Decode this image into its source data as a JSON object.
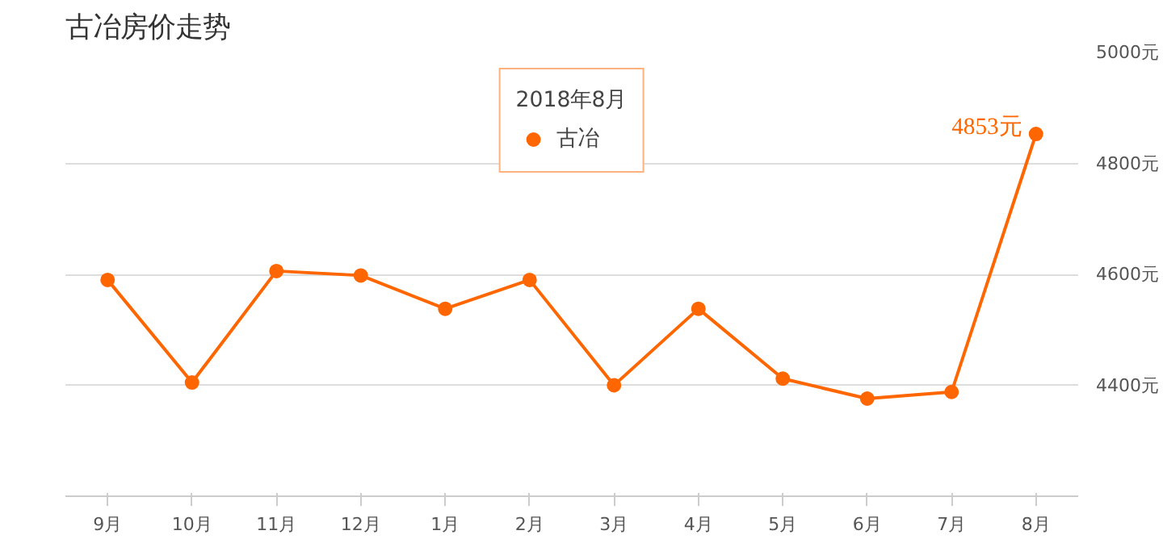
{
  "chart_data": {
    "type": "line",
    "title": "古冶房价走势",
    "categories": [
      "9月",
      "10月",
      "11月",
      "12月",
      "1月",
      "2月",
      "3月",
      "4月",
      "5月",
      "6月",
      "7月",
      "8月"
    ],
    "series": [
      {
        "name": "古冶",
        "color": "#ff6600",
        "values": [
          4590,
          4405,
          4606,
          4598,
          4538,
          4590,
          4400,
          4538,
          4412,
          4376,
          4388,
          4853
        ],
        "value_labels": [
          null,
          null,
          null,
          null,
          null,
          null,
          null,
          null,
          null,
          null,
          null,
          "4853元"
        ]
      }
    ],
    "ylim": [
      4200,
      5000
    ],
    "yticks": [
      {
        "value": 4400,
        "label": "4400元"
      },
      {
        "value": 4600,
        "label": "4600元"
      },
      {
        "value": 4800,
        "label": "4800元"
      },
      {
        "value": 5000,
        "label": "5000元"
      }
    ],
    "annotations": [
      "2018年8月"
    ],
    "grid": "y",
    "legend": "top",
    "marker": "circle",
    "line_style": "solid"
  }
}
